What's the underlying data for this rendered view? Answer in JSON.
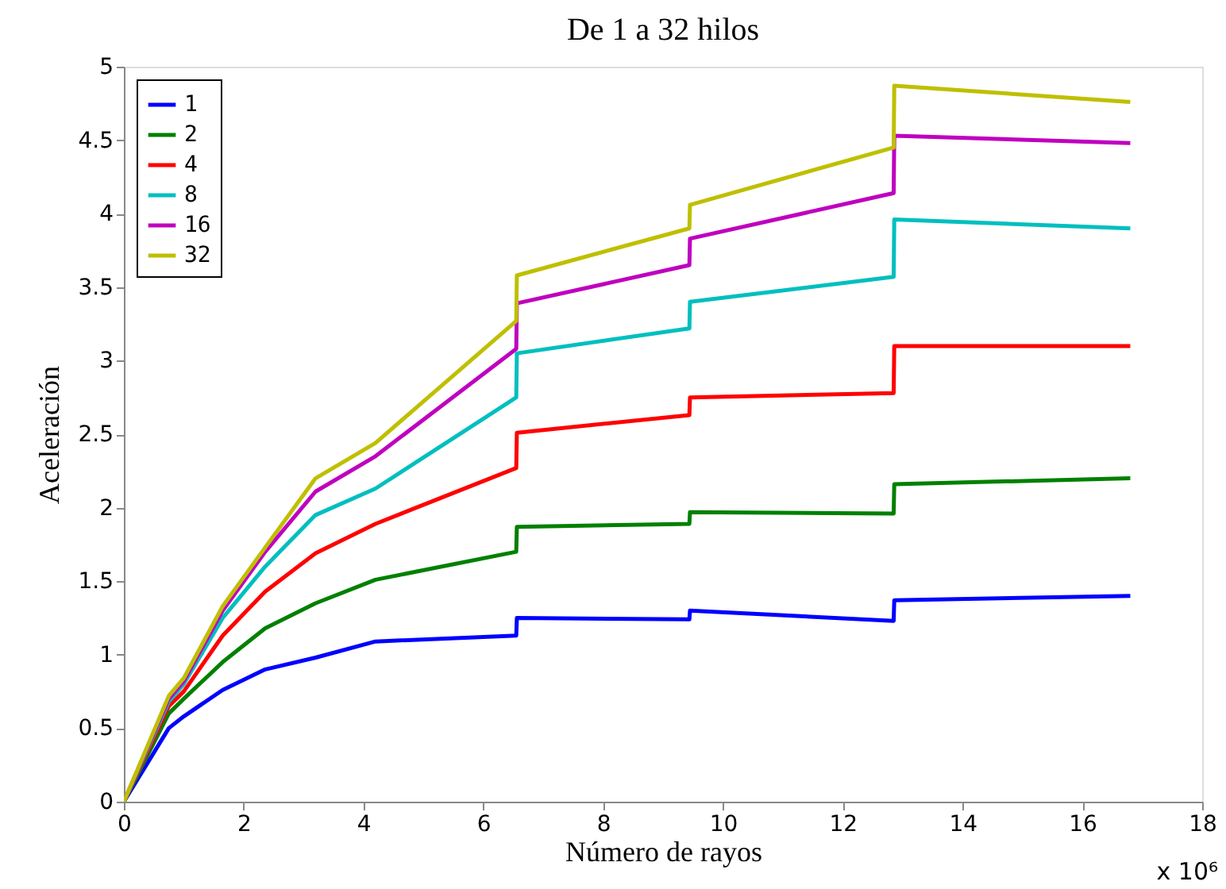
{
  "chart_data": {
    "type": "line",
    "title": "De 1 a 32 hilos",
    "xlabel": "Número de rayos",
    "ylabel": "Aceleración",
    "x": [
      0,
      0.75,
      1.0,
      1.65,
      2.36,
      3.2,
      4.2,
      6.55,
      6.56,
      9.44,
      9.45,
      12.85,
      12.86,
      16.8
    ],
    "series": [
      {
        "name": "1",
        "color": "#0000ff",
        "values": [
          0,
          0.5,
          0.58,
          0.76,
          0.9,
          0.98,
          1.09,
          1.13,
          1.25,
          1.24,
          1.3,
          1.23,
          1.37,
          1.4
        ]
      },
      {
        "name": "2",
        "color": "#008000",
        "values": [
          0,
          0.6,
          0.7,
          0.95,
          1.18,
          1.35,
          1.51,
          1.7,
          1.87,
          1.89,
          1.97,
          1.96,
          2.16,
          2.2
        ]
      },
      {
        "name": "4",
        "color": "#ff0000",
        "values": [
          0,
          0.65,
          0.75,
          1.13,
          1.43,
          1.69,
          1.89,
          2.27,
          2.51,
          2.63,
          2.75,
          2.78,
          3.1,
          3.1
        ]
      },
      {
        "name": "8",
        "color": "#00bfbf",
        "values": [
          0,
          0.68,
          0.8,
          1.25,
          1.6,
          1.95,
          2.13,
          2.75,
          3.05,
          3.22,
          3.4,
          3.57,
          3.96,
          3.9
        ]
      },
      {
        "name": "16",
        "color": "#bf00bf",
        "values": [
          0,
          0.7,
          0.82,
          1.3,
          1.7,
          2.11,
          2.35,
          3.08,
          3.39,
          3.65,
          3.83,
          4.14,
          4.53,
          4.48
        ]
      },
      {
        "name": "32",
        "color": "#bfbf00",
        "values": [
          0,
          0.72,
          0.84,
          1.33,
          1.73,
          2.2,
          2.44,
          3.27,
          3.58,
          3.9,
          4.06,
          4.45,
          4.87,
          4.76
        ]
      }
    ],
    "xlim": [
      0,
      18
    ],
    "xticks": [
      0,
      2,
      4,
      6,
      8,
      10,
      12,
      14,
      16,
      18
    ],
    "ylim": [
      0,
      5
    ],
    "yticks": [
      0,
      0.5,
      1,
      1.5,
      2,
      2.5,
      3,
      3.5,
      4,
      4.5,
      5
    ],
    "annotations": [
      "x 10⁶"
    ],
    "legend": "top left",
    "grid": false,
    "marker": "none",
    "line_style": "solid"
  }
}
